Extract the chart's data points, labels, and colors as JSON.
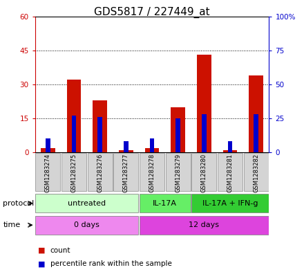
{
  "title": "GDS5817 / 227449_at",
  "samples": [
    "GSM1283274",
    "GSM1283275",
    "GSM1283276",
    "GSM1283277",
    "GSM1283278",
    "GSM1283279",
    "GSM1283280",
    "GSM1283281",
    "GSM1283282"
  ],
  "count_values": [
    2,
    32,
    23,
    1,
    2,
    20,
    43,
    1,
    34
  ],
  "percentile_values": [
    10,
    27,
    26,
    8,
    10,
    25,
    28,
    8,
    28
  ],
  "left_ylim": [
    0,
    60
  ],
  "right_ylim": [
    0,
    100
  ],
  "left_yticks": [
    0,
    15,
    30,
    45,
    60
  ],
  "right_yticks": [
    0,
    25,
    50,
    75,
    100
  ],
  "left_ytick_labels": [
    "0",
    "15",
    "30",
    "45",
    "60"
  ],
  "right_ytick_labels": [
    "0",
    "25",
    "50",
    "75",
    "100%"
  ],
  "bar_color": "#cc1100",
  "percentile_color": "#0000cc",
  "protocol_groups": [
    {
      "label": "untreated",
      "start": 0,
      "end": 3,
      "color": "#ccffcc"
    },
    {
      "label": "IL-17A",
      "start": 4,
      "end": 5,
      "color": "#66ee66"
    },
    {
      "label": "IL-17A + IFN-g",
      "start": 6,
      "end": 8,
      "color": "#33cc33"
    }
  ],
  "time_groups": [
    {
      "label": "0 days",
      "start": 0,
      "end": 3,
      "color": "#ee88ee"
    },
    {
      "label": "12 days",
      "start": 4,
      "end": 8,
      "color": "#dd44dd"
    }
  ],
  "title_fontsize": 11,
  "tick_fontsize": 7.5,
  "sample_fontsize": 6,
  "row_fontsize": 8,
  "legend_fontsize": 7.5
}
